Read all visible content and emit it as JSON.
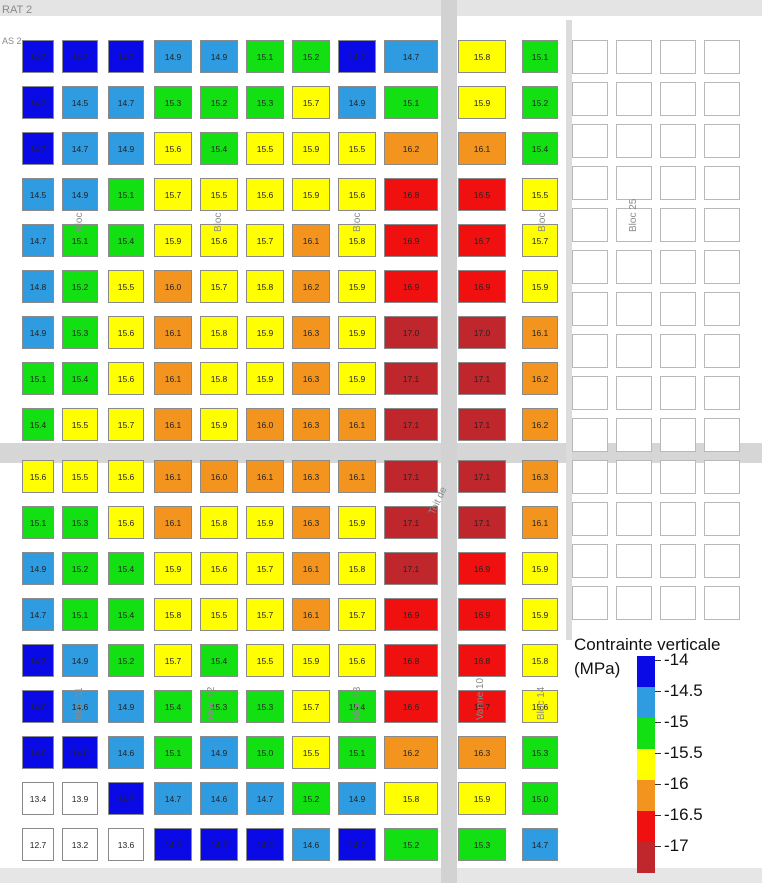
{
  "map_labels": {
    "top_left_1": "RAT 2",
    "top_left_2": "AS 2",
    "bloc_labels": [
      "Bloc 25",
      "Bloc",
      "Bloc",
      "Bloc",
      "Bloc",
      "Bloc 11",
      "Bloc 12",
      "Bloc 13",
      "Bloc 14"
    ],
    "street": "Toit de",
    "road_name": "Vanne 10"
  },
  "legend": {
    "title": "Contrainte verticale\n(MPa)",
    "items": [
      {
        "label": "-14",
        "color": "#0a0ae6"
      },
      {
        "label": "-14.5",
        "color": "#2f9be0"
      },
      {
        "label": "-15",
        "color": "#12e012"
      },
      {
        "label": "-15.5",
        "color": "#ffff00"
      },
      {
        "label": "-16",
        "color": "#f2941e"
      },
      {
        "label": "-16.5",
        "color": "#f01010"
      },
      {
        "label": "-17",
        "color": "#c0272d"
      }
    ]
  },
  "chart_data": {
    "type": "heatmap",
    "title": "Contrainte verticale (MPa)",
    "rows": [
      [
        "14.2",
        "14.2",
        "14.2",
        "14.9",
        "14.9",
        "15.1",
        "15.2",
        "14.2",
        "14.7",
        null,
        "15.8",
        "15.1"
      ],
      [
        "14.2",
        "14.5",
        "14.7",
        "15.3",
        "15.2",
        "15.3",
        "15.7",
        "14.9",
        "15.1",
        null,
        "15.9",
        "15.2"
      ],
      [
        "14.2",
        "14.7",
        "14.9",
        "15.6",
        "15.4",
        "15.5",
        "15.9",
        "15.5",
        "16.2",
        null,
        "16.1",
        "15.4"
      ],
      [
        "14.5",
        "14.9",
        "15.1",
        "15.7",
        "15.5",
        "15.6",
        "15.9",
        "15.6",
        "16.8",
        null,
        "16.5",
        "15.5"
      ],
      [
        "14.7",
        "15.1",
        "15.4",
        "15.9",
        "15.6",
        "15.7",
        "16.1",
        "15.8",
        "16.9",
        null,
        "16.7",
        "15.7"
      ],
      [
        "14.8",
        "15.2",
        "15.5",
        "16.0",
        "15.7",
        "15.8",
        "16.2",
        "15.9",
        "16.9",
        null,
        "16.9",
        "15.9"
      ],
      [
        "14.9",
        "15.3",
        "15.6",
        "16.1",
        "15.8",
        "15.9",
        "16.3",
        "15.9",
        "17.0",
        null,
        "17.0",
        "16.1"
      ],
      [
        "15.1",
        "15.4",
        "15.6",
        "16.1",
        "15.8",
        "15.9",
        "16.3",
        "15.9",
        "17.1",
        null,
        "17.1",
        "16.2"
      ],
      [
        "15.4",
        "15.5",
        "15.7",
        "16.1",
        "15.9",
        "16.0",
        "16.3",
        "16.1",
        "17.1",
        null,
        "17.1",
        "16.2"
      ],
      [
        "15.6",
        "15.5",
        "15.6",
        "16.1",
        "16.0",
        "16.1",
        "16.3",
        "16.1",
        "17.1",
        null,
        "17.1",
        "16.3"
      ],
      [
        "15.1",
        "15.3",
        "15.6",
        "16.1",
        "15.8",
        "15.9",
        "16.3",
        "15.9",
        "17.1",
        null,
        "17.1",
        "16.1"
      ],
      [
        "14.9",
        "15.2",
        "15.4",
        "15.9",
        "15.6",
        "15.7",
        "16.1",
        "15.8",
        "17.1",
        null,
        "16.9",
        "15.9"
      ],
      [
        "14.7",
        "15.1",
        "15.4",
        "15.8",
        "15.5",
        "15.7",
        "16.1",
        "15.7",
        "16.9",
        null,
        "16.9",
        "15.9"
      ],
      [
        "14.3",
        "14.9",
        "15.2",
        "15.7",
        "15.4",
        "15.5",
        "15.9",
        "15.6",
        "16.8",
        null,
        "16.8",
        "15.8"
      ],
      [
        "14.0",
        "14.6",
        "14.9",
        "15.4",
        "15.3",
        "15.3",
        "15.7",
        "15.4",
        "16.6",
        null,
        "16.7",
        "15.6"
      ],
      [
        "14.0",
        "14.0",
        "14.6",
        "15.1",
        "14.9",
        "15.0",
        "15.5",
        "15.1",
        "16.2",
        null,
        "16.3",
        "15.3"
      ],
      [
        "13.4",
        "13.9",
        "14.2",
        "14.7",
        "14.6",
        "14.7",
        "15.2",
        "14.9",
        "15.8",
        null,
        "15.9",
        "15.0"
      ],
      [
        "12.7",
        "13.2",
        "13.6",
        "14.2",
        "14.2",
        "14.2",
        "14.6",
        "14.2",
        "15.2",
        null,
        "15.3",
        "14.7"
      ]
    ],
    "color_scale": {
      "thresholds": [
        14,
        14.5,
        15,
        15.5,
        16,
        16.5,
        17
      ],
      "colors": [
        "#0a0ae6",
        "#2f9be0",
        "#12e012",
        "#ffff00",
        "#f2941e",
        "#f01010",
        "#c0272d"
      ]
    }
  }
}
